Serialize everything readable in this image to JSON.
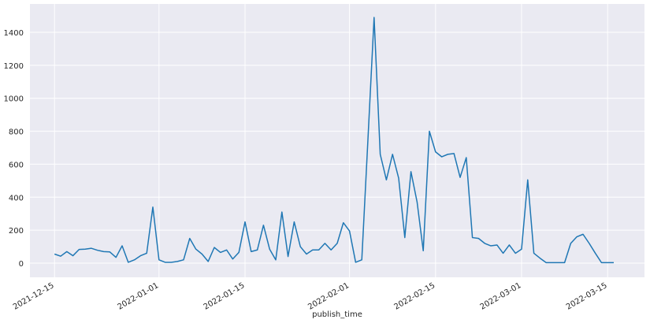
{
  "chart_data": {
    "type": "line",
    "x_label": "publish_time",
    "color": "#1f77b4",
    "grid": true,
    "x": [
      "2021-12-15",
      "2021-12-16",
      "2021-12-17",
      "2021-12-18",
      "2021-12-19",
      "2021-12-20",
      "2021-12-21",
      "2021-12-22",
      "2021-12-23",
      "2021-12-24",
      "2021-12-25",
      "2021-12-26",
      "2021-12-27",
      "2021-12-28",
      "2021-12-29",
      "2021-12-30",
      "2021-12-31",
      "2022-01-01",
      "2022-01-02",
      "2022-01-03",
      "2022-01-04",
      "2022-01-05",
      "2022-01-06",
      "2022-01-07",
      "2022-01-08",
      "2022-01-09",
      "2022-01-10",
      "2022-01-11",
      "2022-01-12",
      "2022-01-13",
      "2022-01-14",
      "2022-01-15",
      "2022-01-16",
      "2022-01-17",
      "2022-01-18",
      "2022-01-19",
      "2022-01-20",
      "2022-01-21",
      "2022-01-22",
      "2022-01-23",
      "2022-01-24",
      "2022-01-25",
      "2022-01-26",
      "2022-01-27",
      "2022-01-28",
      "2022-01-29",
      "2022-01-30",
      "2022-01-31",
      "2022-02-01",
      "2022-02-02",
      "2022-02-03",
      "2022-02-04",
      "2022-02-05",
      "2022-02-06",
      "2022-02-07",
      "2022-02-08",
      "2022-02-09",
      "2022-02-10",
      "2022-02-11",
      "2022-02-12",
      "2022-02-13",
      "2022-02-14",
      "2022-02-15",
      "2022-02-16",
      "2022-02-17",
      "2022-02-18",
      "2022-02-19",
      "2022-02-20",
      "2022-02-21",
      "2022-02-22",
      "2022-02-23",
      "2022-02-24",
      "2022-02-25",
      "2022-02-26",
      "2022-02-27",
      "2022-02-28",
      "2022-03-01",
      "2022-03-02",
      "2022-03-03",
      "2022-03-04",
      "2022-03-05",
      "2022-03-06",
      "2022-03-07",
      "2022-03-08",
      "2022-03-09",
      "2022-03-10",
      "2022-03-11",
      "2022-03-12",
      "2022-03-13",
      "2022-03-14",
      "2022-03-15",
      "2022-03-16"
    ],
    "values": [
      55,
      42,
      70,
      45,
      83,
      85,
      90,
      78,
      70,
      68,
      35,
      105,
      5,
      20,
      45,
      60,
      340,
      20,
      5,
      5,
      10,
      20,
      150,
      85,
      55,
      10,
      95,
      65,
      80,
      25,
      65,
      250,
      70,
      80,
      230,
      85,
      20,
      310,
      40,
      250,
      100,
      55,
      80,
      80,
      120,
      80,
      120,
      245,
      195,
      5,
      20,
      750,
      1490,
      660,
      505,
      660,
      515,
      155,
      555,
      370,
      75,
      800,
      675,
      645,
      660,
      665,
      520,
      640,
      155,
      150,
      120,
      105,
      110,
      60,
      110,
      60,
      85,
      505,
      60,
      30,
      3,
      3,
      3,
      3,
      120,
      160,
      175,
      120,
      60,
      3,
      3,
      3
    ],
    "xlim": [
      "2021-12-11",
      "2022-03-21"
    ],
    "xticks": [
      "2021-12-15",
      "2022-01-01",
      "2022-01-15",
      "2022-02-01",
      "2022-02-15",
      "2022-03-01",
      "2022-03-15"
    ],
    "ylim": [
      -86,
      1572
    ],
    "yticks": [
      0,
      200,
      400,
      600,
      800,
      1000,
      1200,
      1400
    ]
  }
}
